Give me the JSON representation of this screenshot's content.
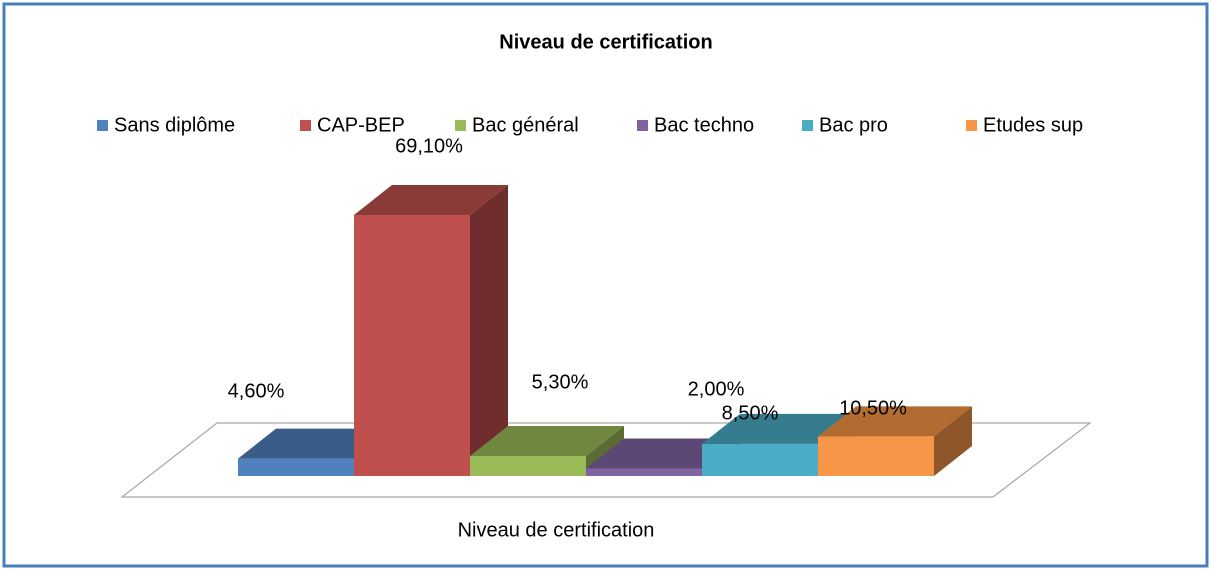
{
  "chart_data": {
    "type": "bar",
    "title": "Niveau de certification",
    "categories": [
      "Niveau de certification"
    ],
    "series": [
      {
        "name": "Sans diplôme",
        "color": "#4f81bd",
        "values": [
          4.6
        ],
        "value_labels": [
          "4,60%"
        ]
      },
      {
        "name": "CAP-BEP",
        "color": "#c0504d",
        "values": [
          69.1
        ],
        "value_labels": [
          "69,10%"
        ]
      },
      {
        "name": "Bac général",
        "color": "#9bbb59",
        "values": [
          5.3
        ],
        "value_labels": [
          "5,30%"
        ]
      },
      {
        "name": "Bac techno",
        "color": "#8064a2",
        "values": [
          2.0
        ],
        "value_labels": [
          "2,00%"
        ]
      },
      {
        "name": "Bac pro",
        "color": "#4bacc6",
        "values": [
          8.5
        ],
        "value_labels": [
          "8,50%"
        ]
      },
      {
        "name": "Etudes sup",
        "color": "#f79646",
        "values": [
          10.5
        ],
        "value_labels": [
          "10,50%"
        ]
      }
    ],
    "legend": "top"
  }
}
